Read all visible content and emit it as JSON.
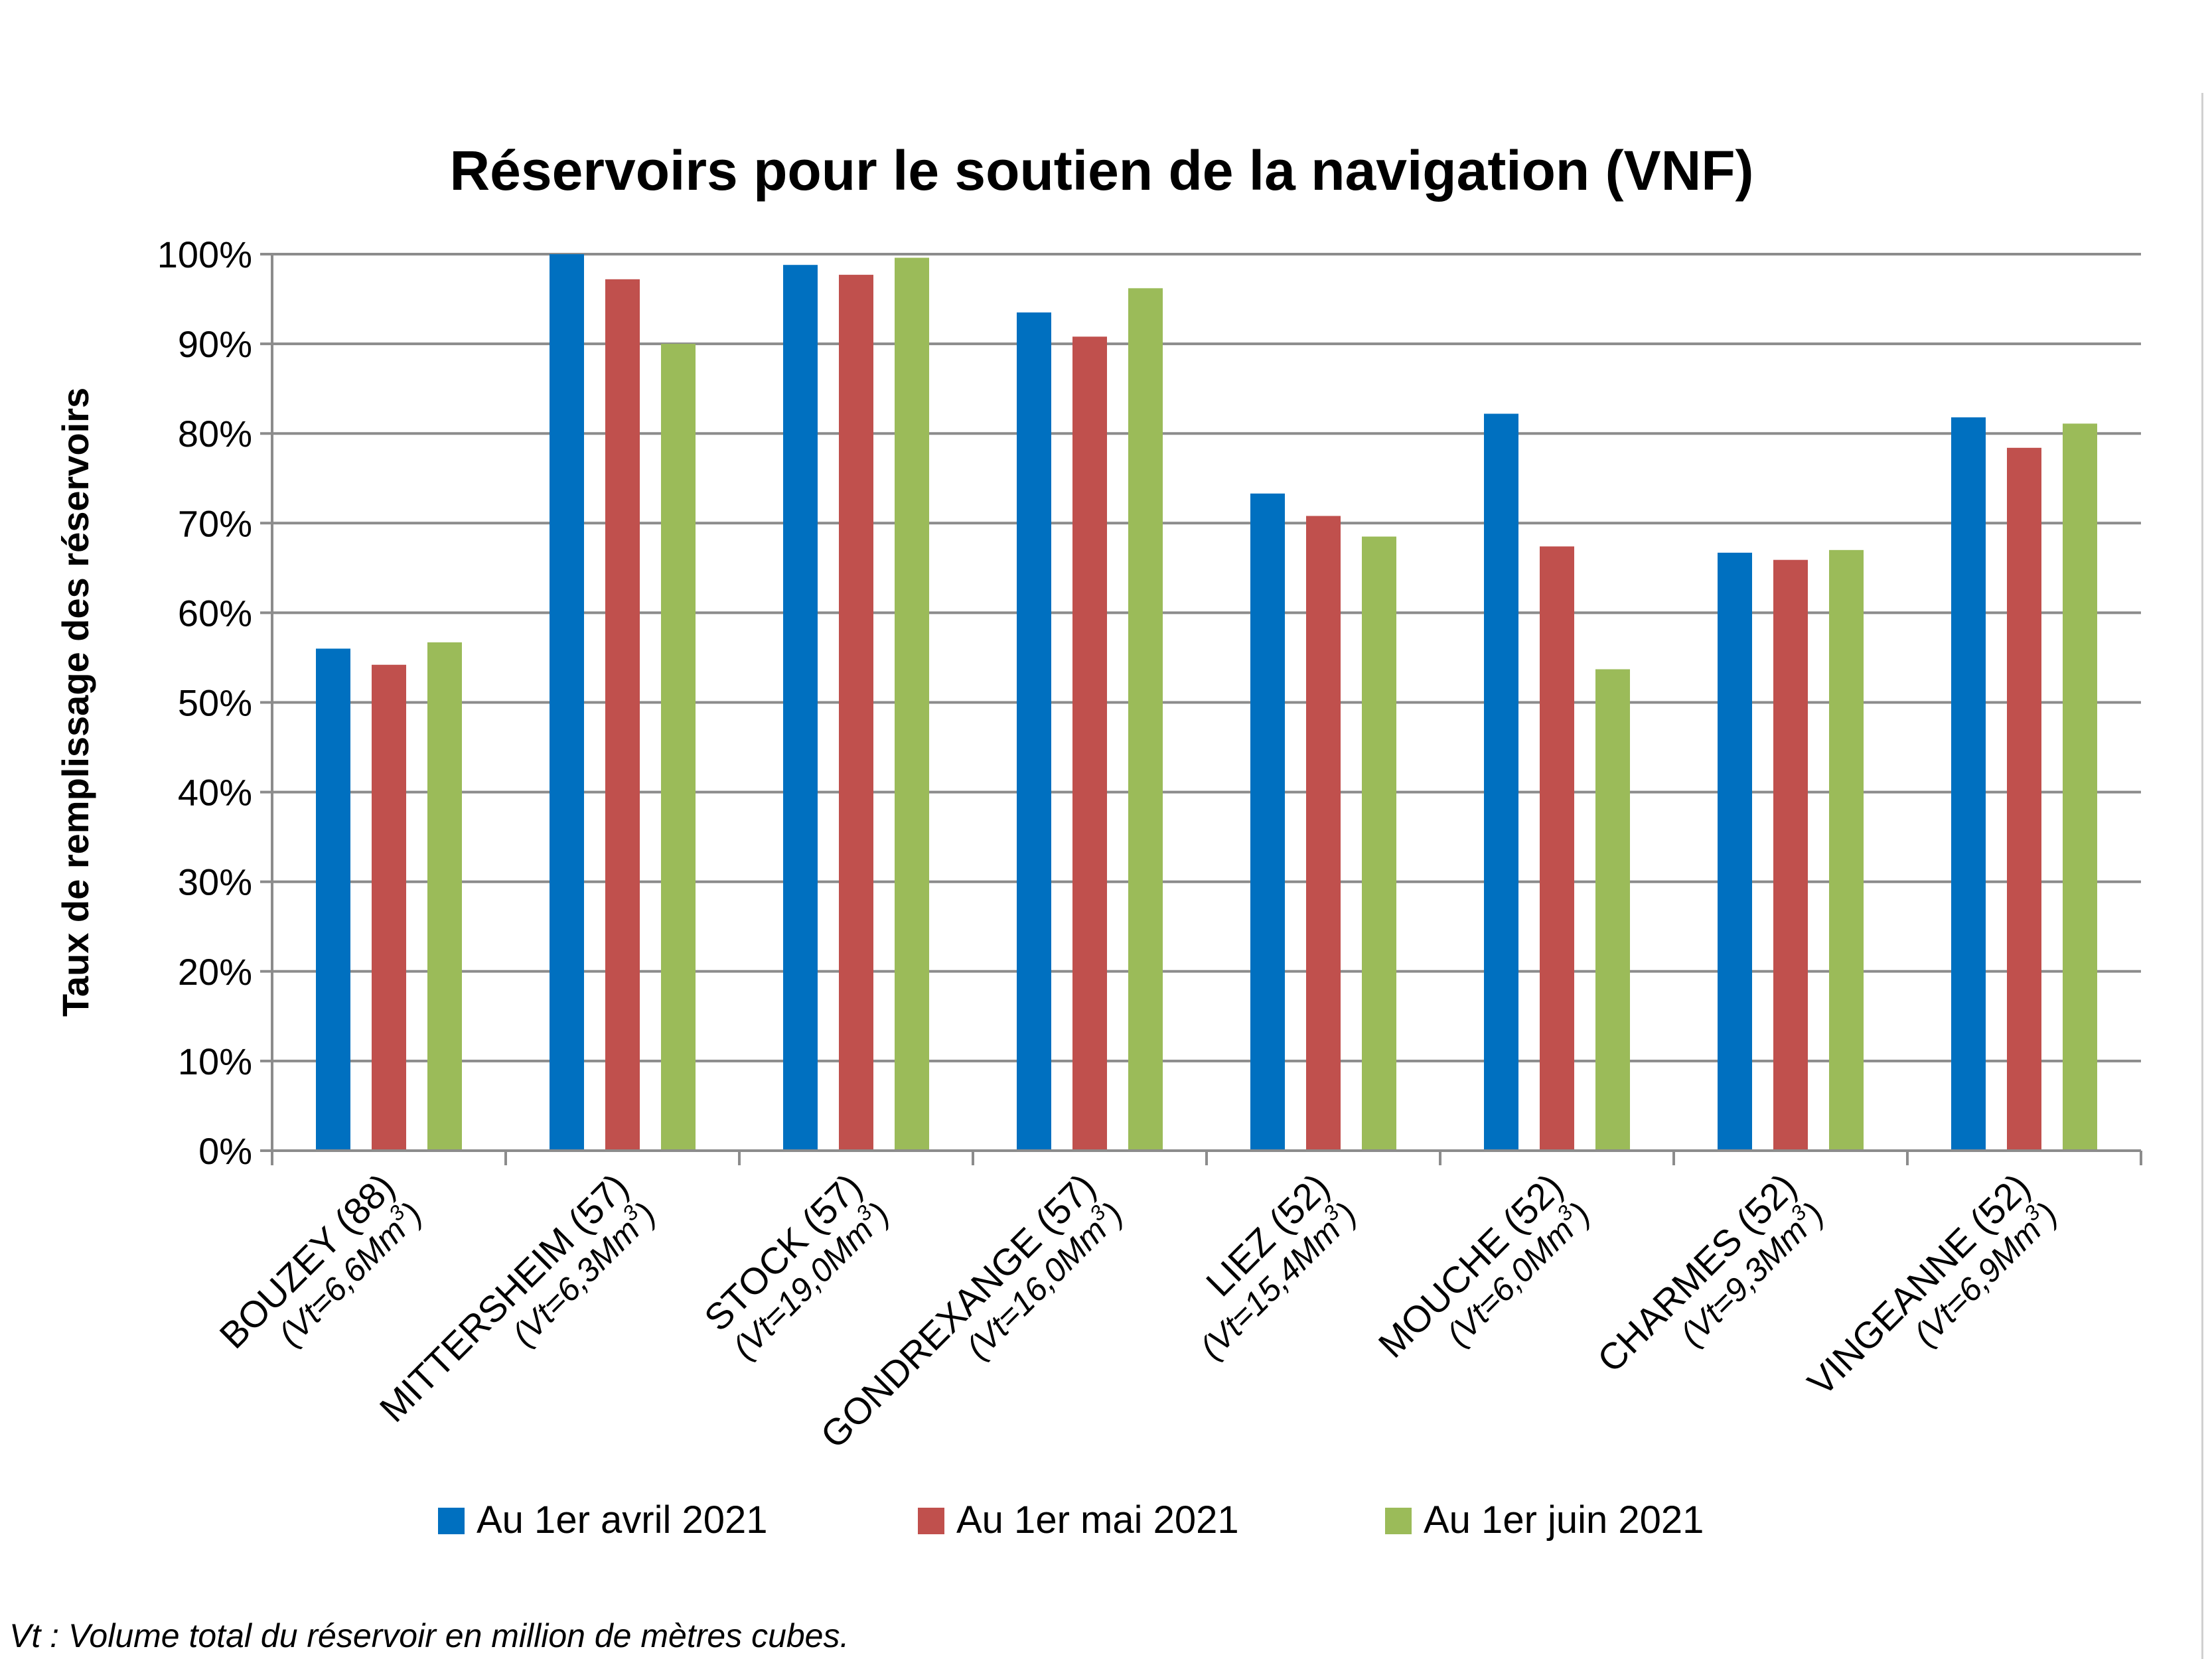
{
  "chart_data": {
    "type": "bar",
    "title": "Réservoirs pour le soutien de la navigation (VNF)",
    "ylabel": "Taux de remplissage des réservoirs",
    "xlabel": "",
    "ylim": [
      0,
      100
    ],
    "y_ticks": [
      "0%",
      "10%",
      "20%",
      "30%",
      "40%",
      "50%",
      "60%",
      "70%",
      "80%",
      "90%",
      "100%"
    ],
    "grid": true,
    "legend_position": "bottom",
    "categories": [
      {
        "name": "BOUZEY (88)",
        "vt": "(Vt=6,6Mm",
        "sup": "3",
        "close": ")"
      },
      {
        "name": "MITTERSHEIM (57)",
        "vt": "(Vt=6,3Mm",
        "sup": "3",
        "close": ")"
      },
      {
        "name": "STOCK (57)",
        "vt": "(Vt=19,0Mm",
        "sup": "3",
        "close": ")"
      },
      {
        "name": "GONDREXANGE (57)",
        "vt": "(Vt=16,0Mm",
        "sup": "3",
        "close": ")"
      },
      {
        "name": "LIEZ (52)",
        "vt": "(Vt=15,4Mm",
        "sup": "3",
        "close": ")"
      },
      {
        "name": "MOUCHE (52)",
        "vt": "(Vt=6,0Mm",
        "sup": "3",
        "close": ")"
      },
      {
        "name": "CHARMES (52)",
        "vt": "(Vt=9,3Mm",
        "sup": "3",
        "close": ")"
      },
      {
        "name": "VINGEANNE (52)",
        "vt": "(Vt=6,9Mm",
        "sup": "3",
        "close": ")"
      }
    ],
    "series": [
      {
        "name": "Au 1er avril 2021",
        "color": "#0070c0",
        "values": [
          56,
          100,
          98.8,
          93.5,
          73.3,
          82.2,
          66.7,
          81.8
        ]
      },
      {
        "name": "Au 1er mai 2021",
        "color": "#c0504d",
        "values": [
          54.2,
          97.2,
          97.7,
          90.8,
          70.8,
          67.4,
          65.9,
          78.4
        ]
      },
      {
        "name": "Au 1er juin 2021",
        "color": "#9bbb59",
        "values": [
          56.7,
          90,
          99.6,
          96.2,
          68.5,
          53.7,
          67,
          81.1
        ]
      }
    ]
  },
  "footnote": "Vt : Volume total du réservoir en million de mètres cubes."
}
